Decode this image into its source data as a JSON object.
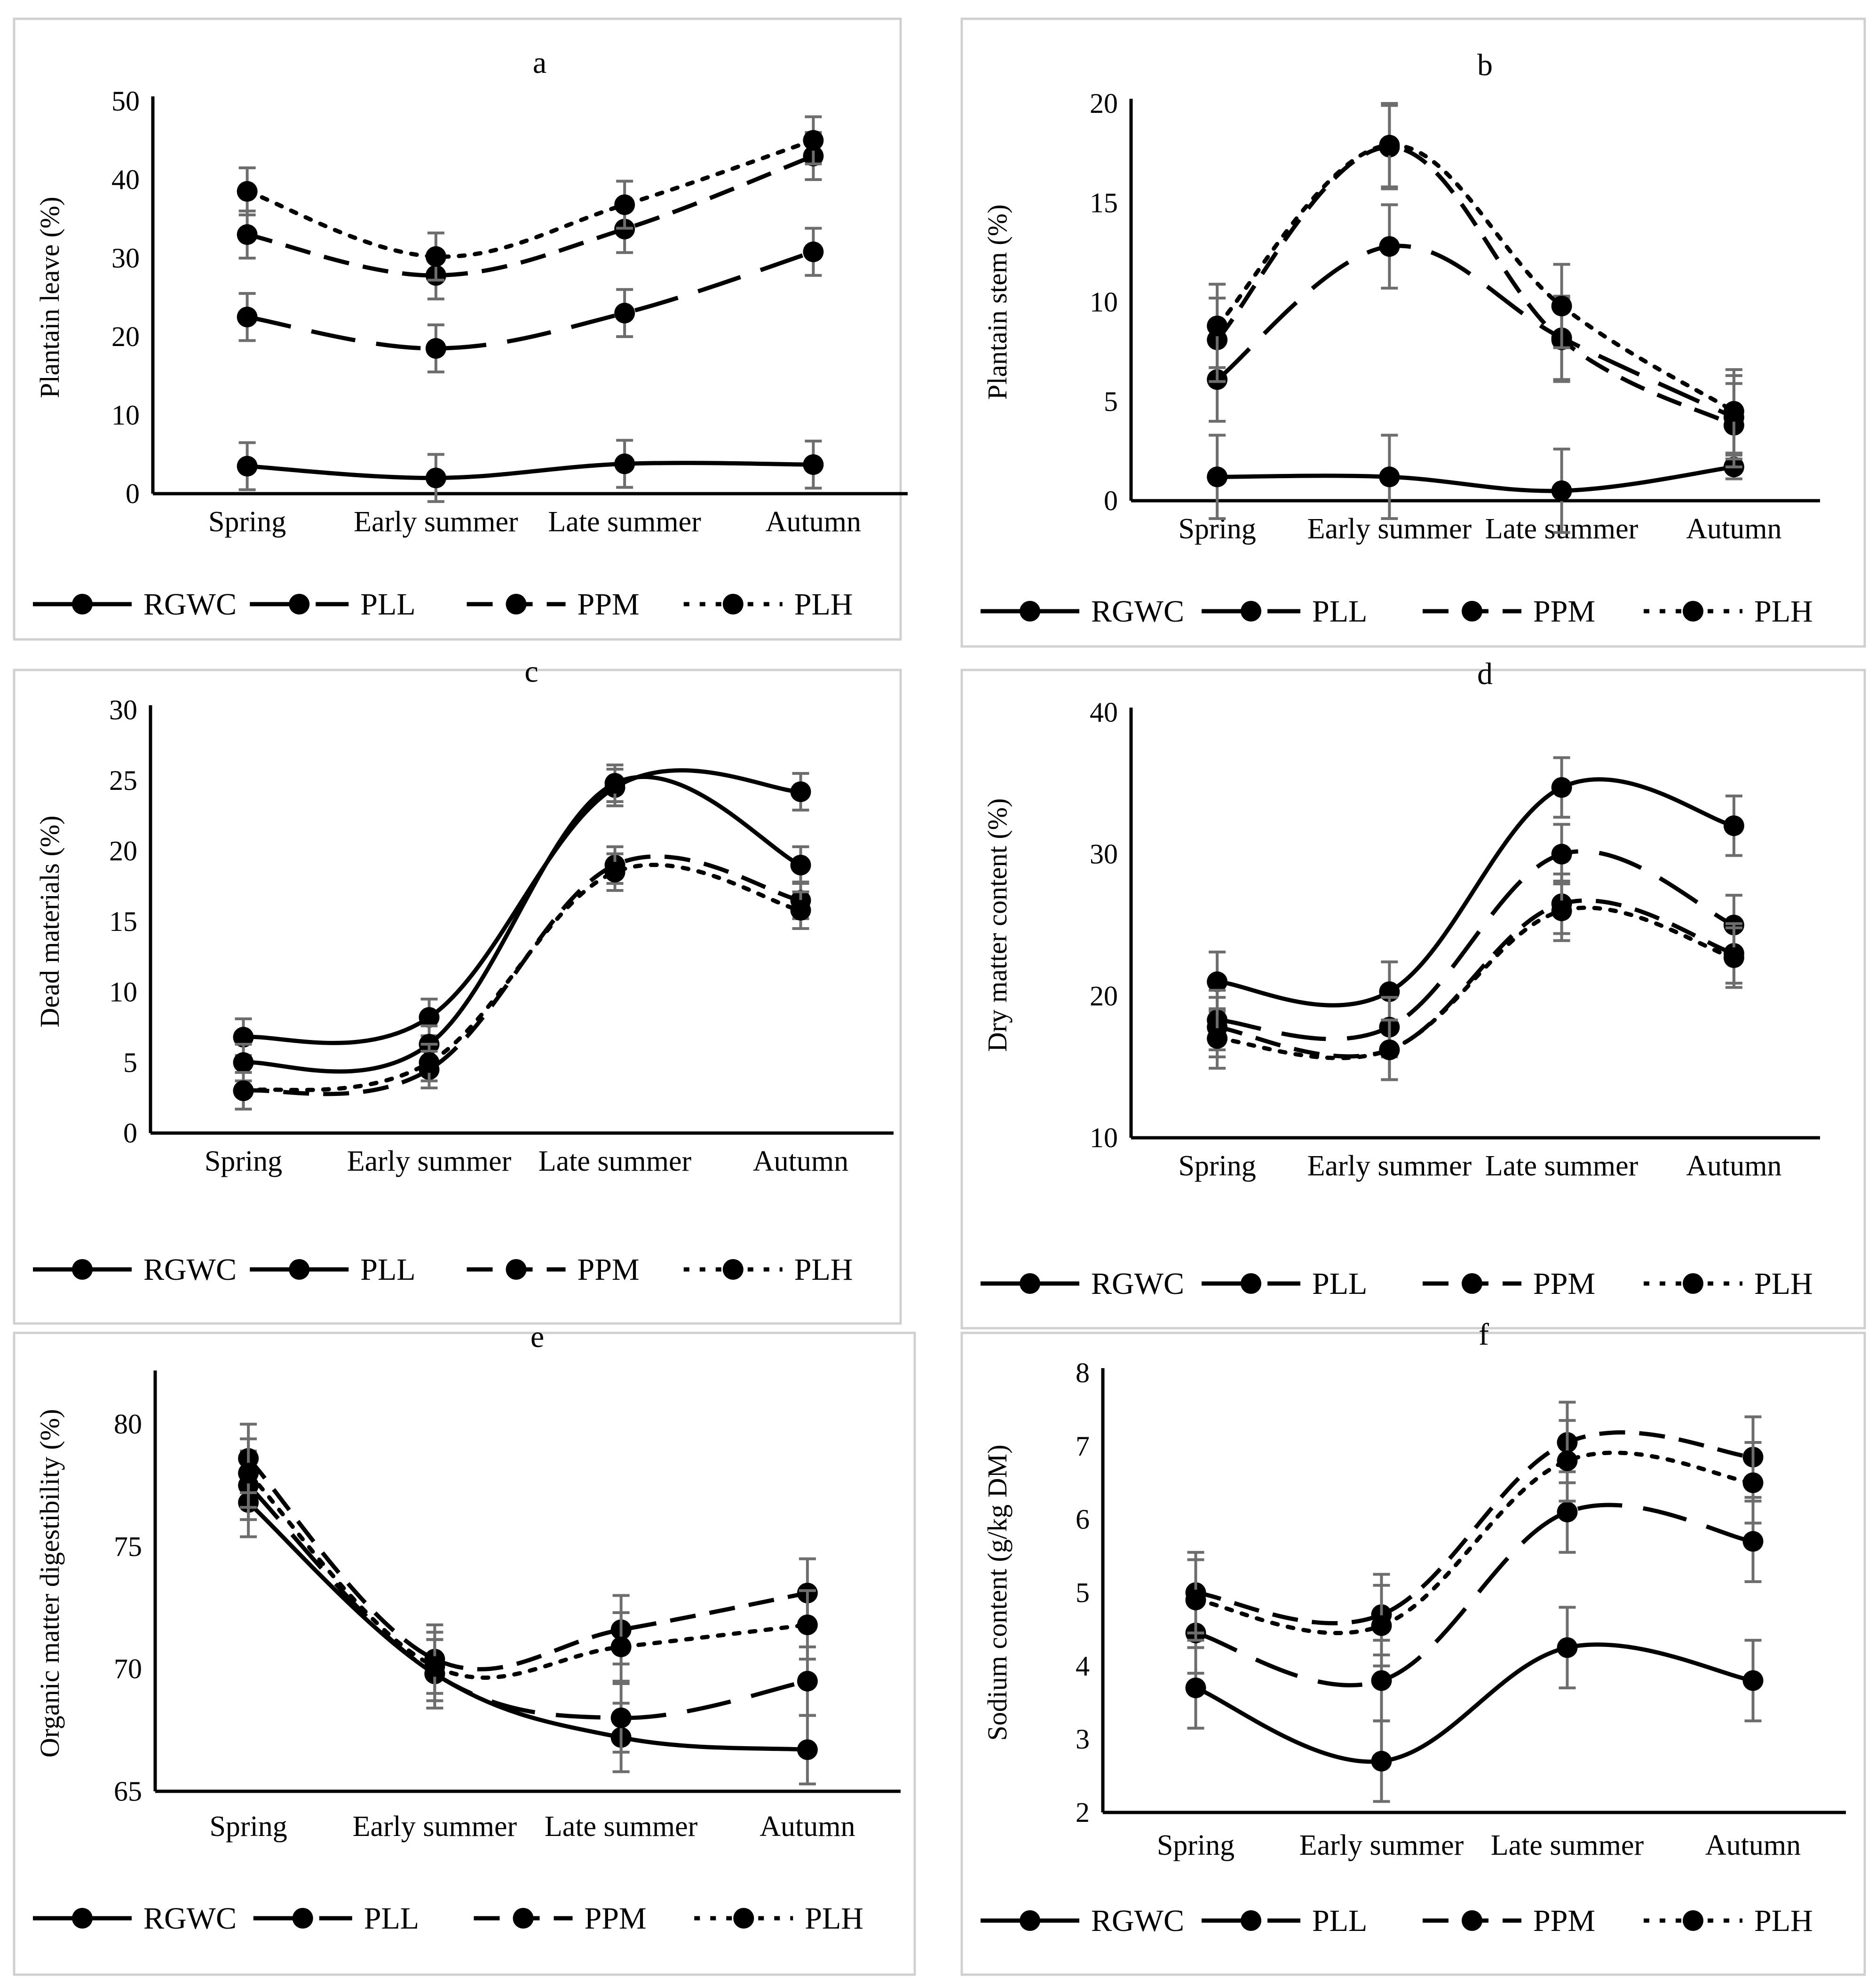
{
  "chart_data": [
    {
      "type": "line",
      "title": "a",
      "ylabel": "Plantain leave (%)",
      "xlabel": "",
      "categories": [
        "Spring",
        "Early summer",
        "Late summer",
        "Autumn"
      ],
      "ylim": [
        0,
        50
      ],
      "yticks": [
        0,
        10,
        20,
        30,
        40,
        50
      ],
      "series": [
        {
          "name": "RGWC",
          "style": "solid",
          "values": [
            3.5,
            2,
            3.8,
            3.7
          ],
          "error": [
            3,
            3,
            3,
            3
          ]
        },
        {
          "name": "PLL",
          "style": "longdash",
          "values": [
            22.5,
            18.5,
            23,
            30.8
          ],
          "error": [
            3,
            3,
            3,
            3
          ]
        },
        {
          "name": "PPM",
          "style": "dash",
          "values": [
            33,
            27.8,
            33.7,
            43
          ],
          "error": [
            3,
            3,
            3,
            3
          ]
        },
        {
          "name": "PLH",
          "style": "dot",
          "values": [
            38.5,
            30.2,
            36.8,
            45
          ],
          "error": [
            3,
            3,
            3,
            3
          ]
        }
      ]
    },
    {
      "type": "line",
      "title": "b",
      "ylabel": "Plantain stem (%)",
      "xlabel": "",
      "categories": [
        "Spring",
        "Early summer",
        "Late summer",
        "Autumn"
      ],
      "ylim": [
        0,
        20
      ],
      "yticks": [
        0,
        5,
        10,
        15,
        20
      ],
      "series": [
        {
          "name": "RGWC",
          "style": "solid",
          "values": [
            1.2,
            1.2,
            0.5,
            1.7
          ],
          "error": [
            2.1,
            2.1,
            2.1,
            0.6
          ]
        },
        {
          "name": "PLL",
          "style": "longdash",
          "values": [
            6.1,
            12.8,
            8.2,
            4.2
          ],
          "error": [
            2.1,
            2.1,
            2.1,
            2.1
          ]
        },
        {
          "name": "PPM",
          "style": "dash",
          "values": [
            8.1,
            17.8,
            8.1,
            3.8
          ],
          "error": [
            2.1,
            2.1,
            2.1,
            2.1
          ]
        },
        {
          "name": "PLH",
          "style": "dot",
          "values": [
            8.8,
            17.9,
            9.8,
            4.5
          ],
          "error": [
            2.1,
            2.1,
            2.1,
            2.1
          ]
        }
      ]
    },
    {
      "type": "line",
      "title": "c",
      "ylabel": "Dead materials (%)",
      "xlabel": "",
      "categories": [
        "Spring",
        "Early summer",
        "Late summer",
        "Autumn"
      ],
      "ylim": [
        0,
        30
      ],
      "yticks": [
        0,
        5,
        10,
        15,
        20,
        25,
        30
      ],
      "series": [
        {
          "name": "RGWC",
          "style": "solid",
          "values": [
            6.8,
            8.2,
            24.5,
            24.2
          ],
          "error": [
            1.3,
            1.3,
            1.3,
            1.3
          ]
        },
        {
          "name": "PLL",
          "style": "solid",
          "values": [
            5,
            6.3,
            24.8,
            19
          ],
          "error": [
            1.3,
            1.3,
            1.3,
            1.3
          ]
        },
        {
          "name": "PPM",
          "style": "dash",
          "values": [
            3,
            4.5,
            19,
            16.5
          ],
          "error": [
            1.3,
            1.3,
            1.3,
            1.3
          ]
        },
        {
          "name": "PLH",
          "style": "dot",
          "values": [
            3,
            5,
            18.5,
            15.8
          ],
          "error": [
            1.3,
            1.3,
            1.3,
            1.3
          ]
        }
      ]
    },
    {
      "type": "line",
      "title": "d",
      "ylabel": "Dry matter content (%)",
      "xlabel": "",
      "categories": [
        "Spring",
        "Early summer",
        "Late summer",
        "Autumn"
      ],
      "ylim": [
        10,
        40
      ],
      "yticks": [
        10,
        20,
        30,
        40
      ],
      "series": [
        {
          "name": "RGWC",
          "style": "solid",
          "values": [
            21,
            20.3,
            34.7,
            32
          ],
          "error": [
            2.1,
            2.1,
            2.1,
            2.1
          ]
        },
        {
          "name": "PLL",
          "style": "longdash",
          "values": [
            18.3,
            17.8,
            30,
            25
          ],
          "error": [
            2.1,
            2.1,
            2.1,
            2.1
          ]
        },
        {
          "name": "PPM",
          "style": "dash",
          "values": [
            17.8,
            16.2,
            26.5,
            23
          ],
          "error": [
            2.1,
            2.1,
            2.1,
            2.1
          ]
        },
        {
          "name": "PLH",
          "style": "dot",
          "values": [
            17,
            16.2,
            26,
            22.7
          ],
          "error": [
            2.1,
            2.1,
            2.1,
            2.1
          ]
        }
      ]
    },
    {
      "type": "line",
      "title": "e",
      "ylabel": "Organic matter digestibility (%)",
      "xlabel": "",
      "categories": [
        "Spring",
        "Early summer",
        "Late summer",
        "Autumn"
      ],
      "ylim": [
        65,
        82
      ],
      "yticks": [
        65,
        70,
        75,
        80
      ],
      "series": [
        {
          "name": "RGWC",
          "style": "solid",
          "values": [
            76.8,
            69.8,
            67.2,
            66.7
          ],
          "error": [
            1.4,
            1.4,
            1.4,
            1.4
          ]
        },
        {
          "name": "PLL",
          "style": "longdash",
          "values": [
            77.5,
            69.8,
            68,
            69.5
          ],
          "error": [
            1.4,
            1.4,
            1.4,
            1.4
          ]
        },
        {
          "name": "PPM",
          "style": "dash",
          "values": [
            78.6,
            70.4,
            71.6,
            73.1
          ],
          "error": [
            1.4,
            1.4,
            1.4,
            1.4
          ]
        },
        {
          "name": "PLH",
          "style": "dot",
          "values": [
            78,
            70.1,
            70.9,
            71.8
          ],
          "error": [
            1.4,
            1.4,
            1.4,
            1.4
          ]
        }
      ]
    },
    {
      "type": "line",
      "title": "f",
      "ylabel": "Sodium content (g/kg DM)",
      "xlabel": "",
      "categories": [
        "Spring",
        "Early summer",
        "Late summer",
        "Autumn"
      ],
      "ylim": [
        2,
        8
      ],
      "yticks": [
        2,
        3,
        4,
        5,
        6,
        7,
        8
      ],
      "series": [
        {
          "name": "RGWC",
          "style": "solid",
          "values": [
            3.7,
            2.7,
            4.25,
            3.8
          ],
          "error": [
            0.55,
            0.55,
            0.55,
            0.55
          ]
        },
        {
          "name": "PLL",
          "style": "longdash",
          "values": [
            4.45,
            3.8,
            6.1,
            5.7
          ],
          "error": [
            0.55,
            0.55,
            0.55,
            0.55
          ]
        },
        {
          "name": "PPM",
          "style": "dash",
          "values": [
            5,
            4.7,
            7.05,
            6.85
          ],
          "error": [
            0.55,
            0.55,
            0.55,
            0.55
          ]
        },
        {
          "name": "PLH",
          "style": "dot",
          "values": [
            4.9,
            4.55,
            6.8,
            6.5
          ],
          "error": [
            0.55,
            0.55,
            0.55,
            0.55
          ]
        }
      ]
    }
  ]
}
